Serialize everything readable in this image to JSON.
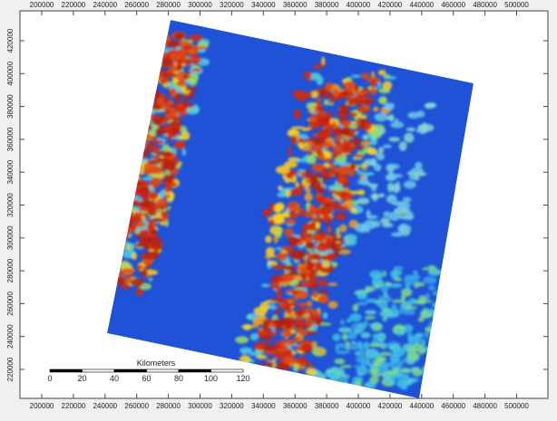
{
  "map": {
    "x_ticks": [
      "200000",
      "220000",
      "240000",
      "260000",
      "280000",
      "300000",
      "320000",
      "340000",
      "360000",
      "380000",
      "400000",
      "420000",
      "440000",
      "460000",
      "480000",
      "500000"
    ],
    "y_ticks": [
      "220000",
      "240000",
      "260000",
      "280000",
      "300000",
      "320000",
      "340000",
      "360000",
      "380000",
      "400000",
      "420000"
    ],
    "scale_bar": {
      "title": "Kilometers",
      "ticks": [
        "0",
        "20",
        "40",
        "60",
        "80",
        "100",
        "120"
      ]
    }
  }
}
